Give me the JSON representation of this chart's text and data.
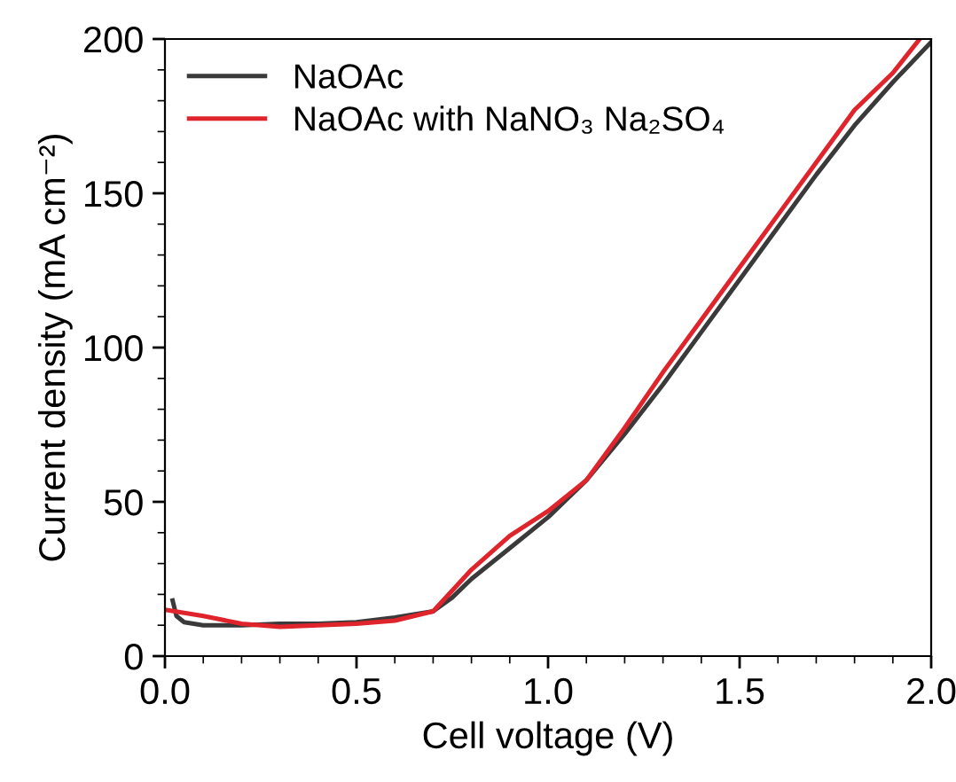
{
  "chart_data": {
    "type": "line",
    "xlabel": "Cell voltage (V)",
    "ylabel": "Current density (mA cm⁻²)",
    "xlim": [
      0,
      2
    ],
    "xticks": [
      {
        "value": 0,
        "label": "0.0"
      },
      0.5,
      {
        "value": 1,
        "label": "1.0"
      },
      1.5,
      {
        "value": 2,
        "label": "2.0"
      }
    ],
    "ylim": [
      0,
      200
    ],
    "yticks": [
      0,
      50,
      100,
      150,
      200
    ],
    "grid": false,
    "legend": "top left",
    "line_style": "solid",
    "marker": "none",
    "series": [
      {
        "name": "NaOAc",
        "color": "#3a3a3a",
        "x": [
          0.02,
          0.03,
          0.05,
          0.1,
          0.2,
          0.3,
          0.4,
          0.5,
          0.6,
          0.7,
          0.75,
          0.8,
          0.9,
          1.0,
          1.1,
          1.2,
          1.3,
          1.4,
          1.5,
          1.6,
          1.7,
          1.8,
          1.9,
          2.0
        ],
        "values": [
          18,
          13,
          11,
          10,
          10,
          10.5,
          10.5,
          11,
          12.5,
          14.5,
          19,
          25,
          35,
          45,
          57,
          72,
          88,
          105,
          122,
          139,
          156,
          172,
          186,
          199
        ]
      },
      {
        "name": "NaOAc with NaNO₃ Na₂SO₄",
        "color": "#e0242c",
        "x": [
          0,
          0.1,
          0.2,
          0.3,
          0.4,
          0.5,
          0.6,
          0.7,
          0.8,
          0.9,
          1.0,
          1.1,
          1.2,
          1.3,
          1.4,
          1.5,
          1.6,
          1.7,
          1.8,
          1.9,
          1.97
        ],
        "values": [
          15,
          13,
          10.5,
          9.5,
          10,
          10.5,
          11.5,
          14.5,
          28,
          39,
          47,
          57,
          74,
          92,
          109,
          126,
          143,
          160,
          177,
          189,
          200
        ]
      }
    ]
  }
}
